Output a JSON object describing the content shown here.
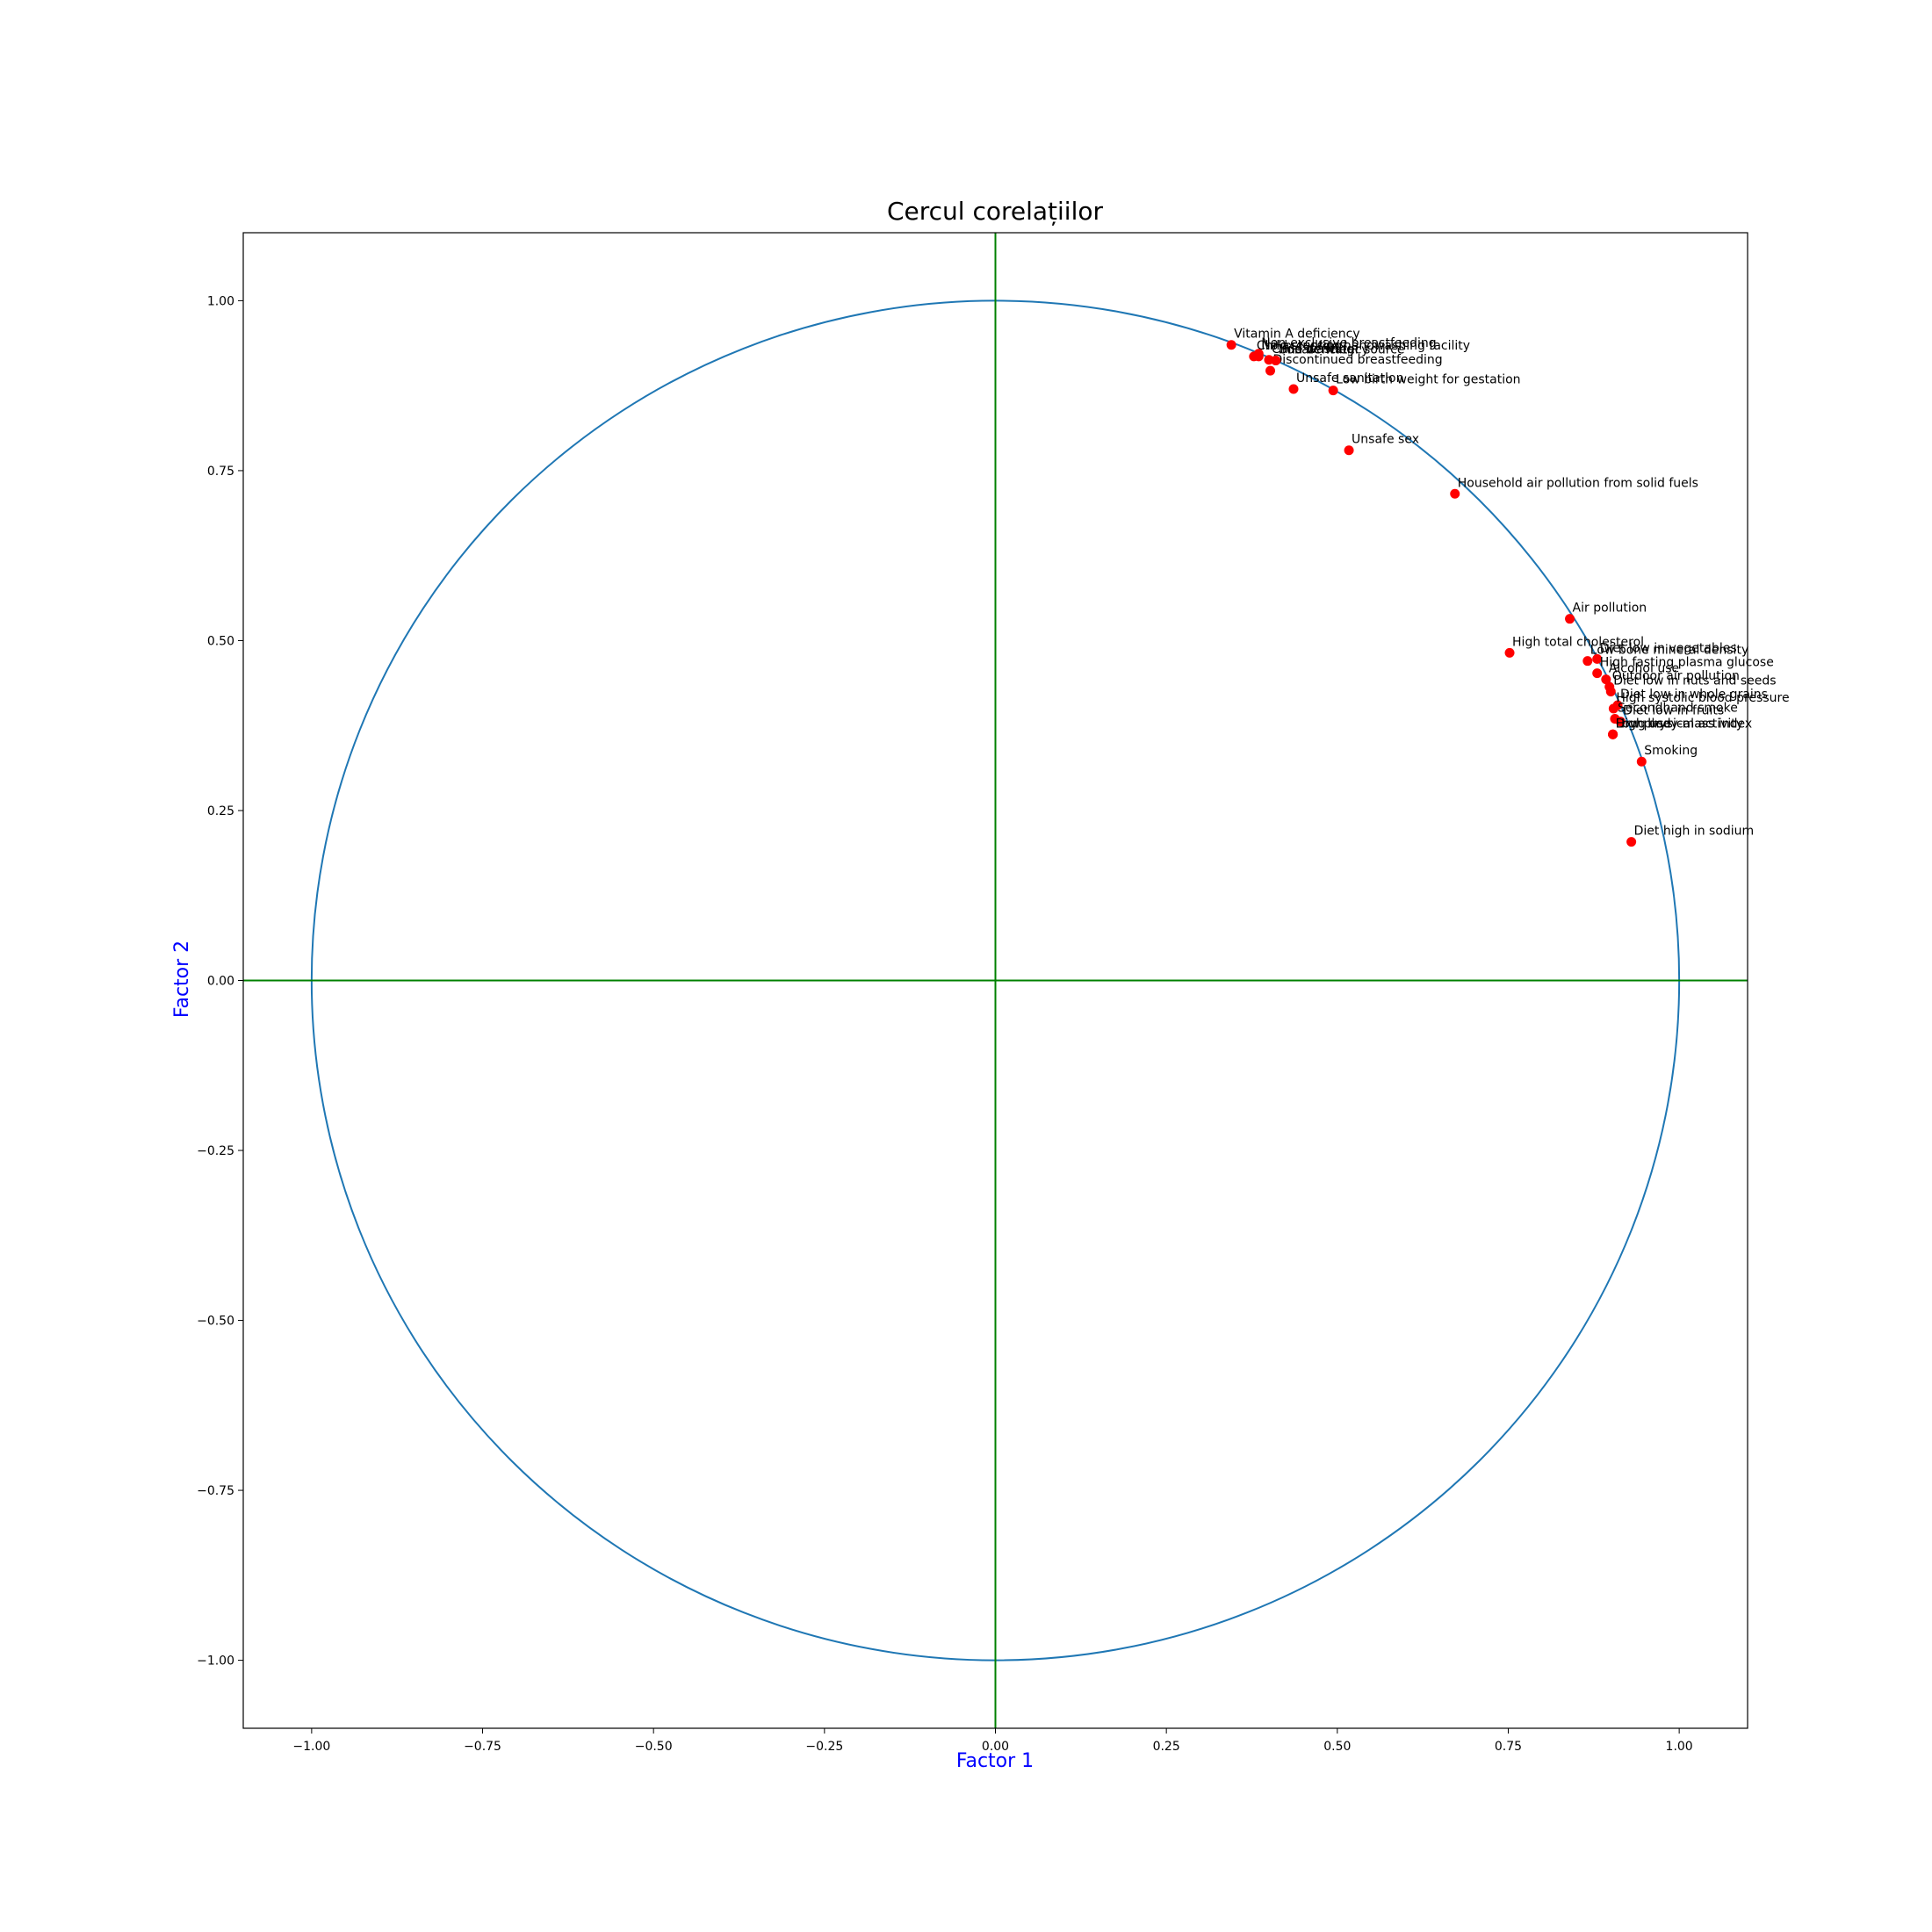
{
  "chart_data": {
    "type": "scatter",
    "title": "Cercul corelațiilor",
    "xlabel": "Factor 1",
    "ylabel": "Factor 2",
    "xlim": [
      -1.1,
      1.1
    ],
    "ylim": [
      -1.1,
      1.1
    ],
    "xticks": [
      "−1.00",
      "−0.75",
      "−0.50",
      "−0.25",
      "0.00",
      "0.25",
      "0.50",
      "0.75",
      "1.00"
    ],
    "yticks": [
      "−1.00",
      "−0.75",
      "−0.50",
      "−0.25",
      "0.00",
      "0.25",
      "0.50",
      "0.75",
      "1.00"
    ],
    "tick_values": [
      -1.0,
      -0.75,
      -0.5,
      -0.25,
      0.0,
      0.25,
      0.5,
      0.75,
      1.0
    ],
    "unit_circle": true,
    "grid": false,
    "colors": {
      "points": "#ff0000",
      "circle": "#1f77b4",
      "axes_lines": "#008000",
      "axis_labels": "#0000ff"
    },
    "points": [
      {
        "label": "Vitamin A deficiency",
        "x": 0.345,
        "y": 0.935
      },
      {
        "label": "Child stunting",
        "x": 0.378,
        "y": 0.918
      },
      {
        "label": "Non-exclusive breastfeeding",
        "x": 0.385,
        "y": 0.922
      },
      {
        "label": "Child wasting",
        "x": 0.4,
        "y": 0.913
      },
      {
        "label": "Discontinued breastfeeding",
        "x": 0.402,
        "y": 0.897
      },
      {
        "label": "Unsafe water source",
        "x": 0.41,
        "y": 0.912
      },
      {
        "label": "No access to handwashing facility",
        "x": 0.385,
        "y": 0.918
      },
      {
        "label": "Unsafe sanitation",
        "x": 0.436,
        "y": 0.87
      },
      {
        "label": "Iron deficiency",
        "x": 0.41,
        "y": 0.912
      },
      {
        "label": "Low birth weight for gestation",
        "x": 0.494,
        "y": 0.868
      },
      {
        "label": "Unsafe sex",
        "x": 0.517,
        "y": 0.78
      },
      {
        "label": "Household air pollution from solid fuels",
        "x": 0.672,
        "y": 0.716
      },
      {
        "label": "Air pollution",
        "x": 0.84,
        "y": 0.532
      },
      {
        "label": "High total cholesterol",
        "x": 0.752,
        "y": 0.482
      },
      {
        "label": "Diet low in vegetables",
        "x": 0.88,
        "y": 0.473
      },
      {
        "label": "Low bone mineral density",
        "x": 0.866,
        "y": 0.47
      },
      {
        "label": "High fasting plasma glucose",
        "x": 0.88,
        "y": 0.452
      },
      {
        "label": "Alcohol use",
        "x": 0.893,
        "y": 0.443
      },
      {
        "label": "Outdoor air pollution",
        "x": 0.898,
        "y": 0.432
      },
      {
        "label": "Diet low in nuts and seeds",
        "x": 0.9,
        "y": 0.425
      },
      {
        "label": "Diet low in whole grains",
        "x": 0.91,
        "y": 0.405
      },
      {
        "label": "High systolic blood pressure",
        "x": 0.904,
        "y": 0.4
      },
      {
        "label": "Secondhand smoke",
        "x": 0.906,
        "y": 0.385
      },
      {
        "label": "Diet low in fruits",
        "x": 0.914,
        "y": 0.381
      },
      {
        "label": "High body-mass index",
        "x": 0.903,
        "y": 0.362
      },
      {
        "label": "Low physical activity",
        "x": 0.903,
        "y": 0.362
      },
      {
        "label": "Drug use",
        "x": 0.903,
        "y": 0.362
      },
      {
        "label": "Smoking",
        "x": 0.945,
        "y": 0.322
      },
      {
        "label": "Diet high in sodium",
        "x": 0.93,
        "y": 0.204
      }
    ]
  }
}
